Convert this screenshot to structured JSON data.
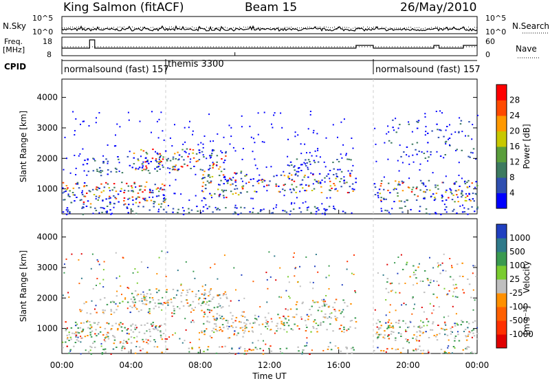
{
  "header": {
    "station": "King Salmon (fitACF)",
    "beam": "Beam 15",
    "date": "26/May/2010"
  },
  "top_labels": {
    "nsky": "N.Sky",
    "nsearch": "N.Search",
    "freq": "Freq.",
    "mhz": "[MHz]",
    "cpid": "CPID",
    "nave": "Nave",
    "tick_1e5": "10^5",
    "tick_1e0": "10^0",
    "tick_1e5_r": "10^5",
    "tick_1e0_r": "10^0",
    "freq_18": "18",
    "freq_8": "8",
    "nave_60": "60",
    "nave_0": "0"
  },
  "cpid_segments": [
    {
      "label": "normalsound (fast) 157",
      "start_hour": 0,
      "end_hour": 6
    },
    {
      "label": "themis 3300",
      "start_hour": 6,
      "end_hour": 18
    },
    {
      "label": "normalsound (fast) 157",
      "start_hour": 18,
      "end_hour": 24
    }
  ],
  "chart_data": [
    {
      "type": "heatmap",
      "name": "power",
      "xlabel": "Time UT",
      "ylabel": "Slant Range [km]",
      "xlim": [
        0,
        24
      ],
      "ylim": [
        180,
        4600
      ],
      "yticks": [
        "1000",
        "2000",
        "3000",
        "4000"
      ],
      "xticks": [
        "00:00",
        "04:00",
        "08:00",
        "12:00",
        "16:00",
        "20:00",
        "00:00"
      ],
      "colorbar": {
        "label": "Power [dB]",
        "ticks": [
          "4",
          "8",
          "12",
          "16",
          "20",
          "24",
          "28"
        ],
        "colors": [
          "#0000ff",
          "#2f4fb0",
          "#3d7a60",
          "#5a9e3c",
          "#c8c800",
          "#ff9900",
          "#ff4a00",
          "#ff0000"
        ]
      }
    },
    {
      "type": "heatmap",
      "name": "velocity",
      "xlabel": "Time UT",
      "ylabel": "Slant Range [km]",
      "xlim": [
        0,
        24
      ],
      "ylim": [
        180,
        4600
      ],
      "yticks": [
        "1000",
        "2000",
        "3000",
        "4000"
      ],
      "xticks": [
        "00:00",
        "04:00",
        "08:00",
        "12:00",
        "16:00",
        "20:00",
        "00:00"
      ],
      "colorbar": {
        "label": "Velocity",
        "unit": "[m s⁻¹]",
        "ticks": [
          "1000",
          "500",
          "100",
          "25",
          "-25",
          "-100",
          "-500",
          "-1000"
        ],
        "colors": [
          "#2040c0",
          "#2f7a8a",
          "#3a9a50",
          "#7acc30",
          "#bfbfbf",
          "#ff9000",
          "#ff6000",
          "#ff3000",
          "#e00000"
        ]
      }
    }
  ],
  "scatter_features": [
    {
      "t0": 0.0,
      "t1": 6.0,
      "r0": 500,
      "r1": 1250,
      "density": 0.55
    },
    {
      "t0": 1.0,
      "t1": 6.5,
      "r0": 1450,
      "r1": 2100,
      "density": 0.25
    },
    {
      "t0": 4.0,
      "t1": 9.5,
      "r0": 1600,
      "r1": 2350,
      "density": 0.45
    },
    {
      "t0": 8.0,
      "t1": 10.5,
      "r0": 700,
      "r1": 1600,
      "density": 0.55
    },
    {
      "t0": 10.5,
      "t1": 17.0,
      "r0": 900,
      "r1": 1500,
      "density": 0.45
    },
    {
      "t0": 13.0,
      "t1": 16.8,
      "r0": 1500,
      "r1": 2000,
      "density": 0.35
    },
    {
      "t0": 18.0,
      "t1": 24.0,
      "r0": 600,
      "r1": 1300,
      "density": 0.5
    },
    {
      "t0": 18.5,
      "t1": 24.0,
      "r0": 2000,
      "r1": 3300,
      "density": 0.12
    },
    {
      "t0": 0.0,
      "t1": 24.0,
      "r0": 180,
      "r1": 450,
      "density": 0.35
    }
  ]
}
